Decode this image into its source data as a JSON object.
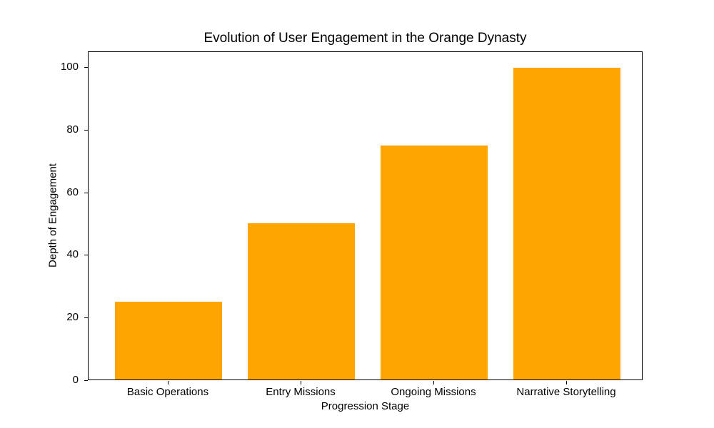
{
  "chart_data": {
    "type": "bar",
    "title": "Evolution of User Engagement in the Orange Dynasty",
    "xlabel": "Progression Stage",
    "ylabel": "Depth of Engagement",
    "categories": [
      "Basic Operations",
      "Entry Missions",
      "Ongoing Missions",
      "Narrative Storytelling"
    ],
    "values": [
      25,
      50,
      75,
      100
    ],
    "yticks": [
      0,
      20,
      40,
      60,
      80,
      100
    ],
    "ylim": [
      0,
      105
    ],
    "bar_color": "#FFA500",
    "background_color": "#FFFFFF",
    "axis_color": "#000000",
    "grid": false,
    "legend_position": "none"
  }
}
